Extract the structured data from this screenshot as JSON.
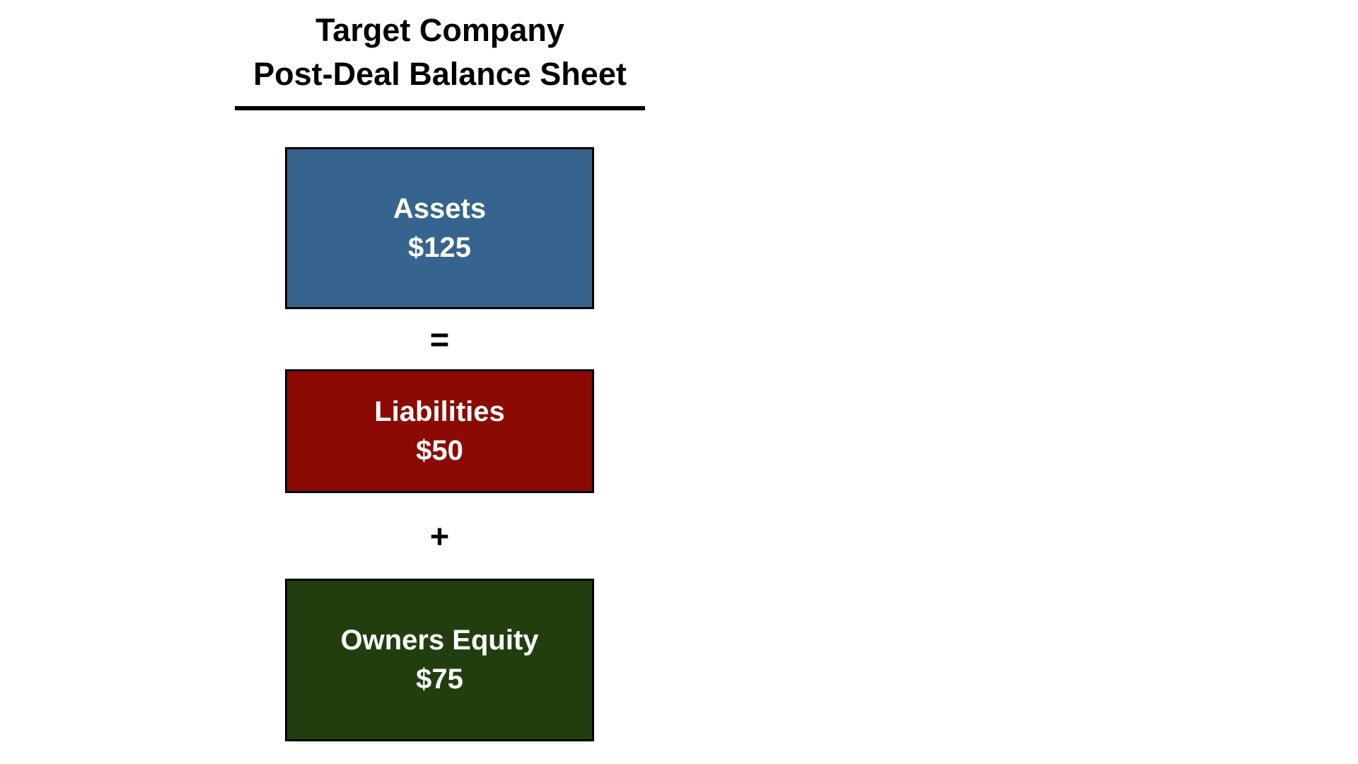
{
  "slide": {
    "title_line1": "Target Company",
    "title_line2": "Post-Deal Balance Sheet"
  },
  "equation": {
    "boxes": [
      {
        "name": "assets",
        "label": "Assets",
        "value": "$125",
        "bg": "#36648E",
        "text_color": "#FFFFFF"
      },
      {
        "name": "liabilities",
        "label": "Liabilities",
        "value": "$50",
        "bg": "#8B0A03",
        "text_color": "#FFFFFF"
      },
      {
        "name": "owners-equity",
        "label": "Owners Equity",
        "value": "$75",
        "bg": "#223E0E",
        "text_color": "#FFFFFF"
      }
    ],
    "operator_equals": "=",
    "operator_plus": "+"
  },
  "colors": {
    "background": "#FFFFFF",
    "box_border": "#000000",
    "title_text": "#000000",
    "underline": "#000000"
  }
}
